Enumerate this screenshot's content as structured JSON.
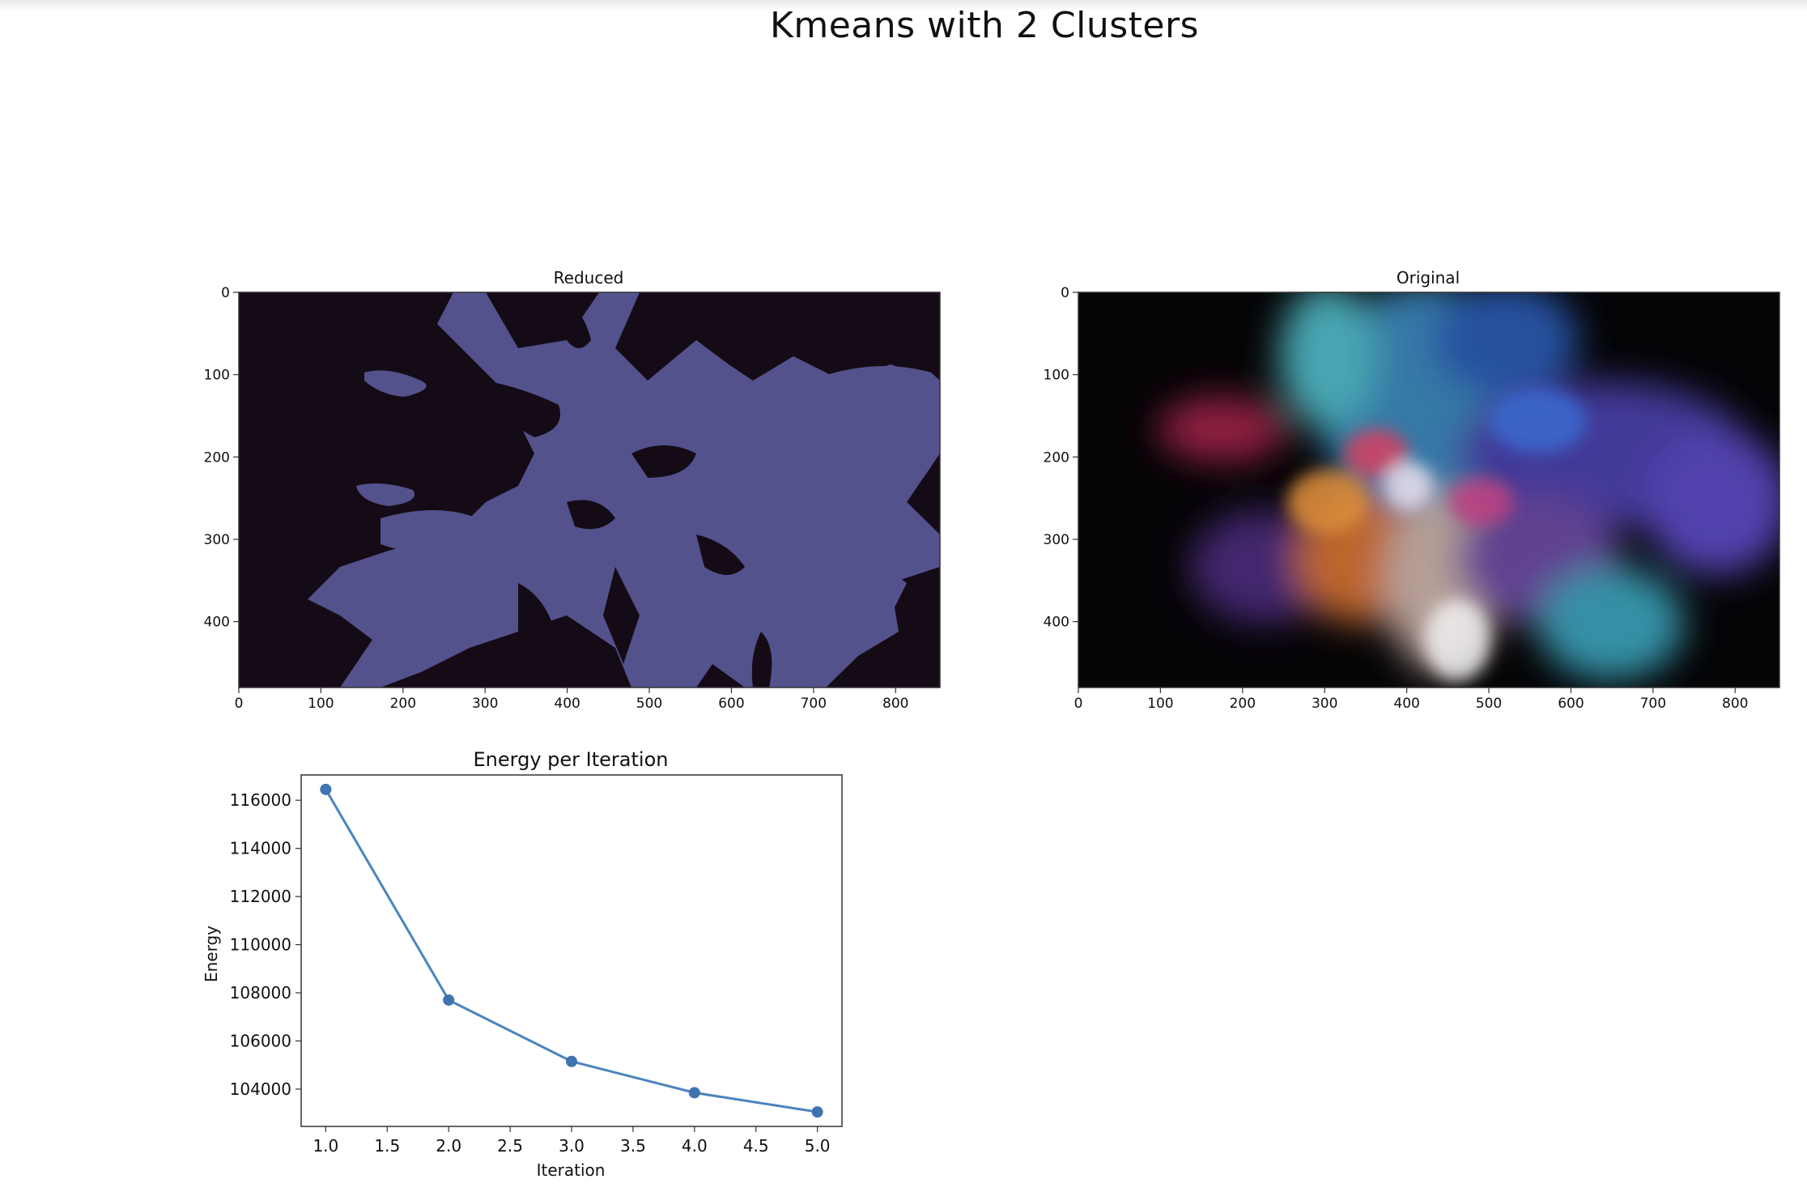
{
  "figure": {
    "title": "Kmeans with 2 Clusters"
  },
  "colors": {
    "reduced_dark": "#150b17",
    "reduced_light": "#54528c",
    "line": "#4a84bd",
    "axes": "#333333"
  },
  "chart_data": [
    {
      "type": "image",
      "title": "Reduced",
      "description_colors": [
        "#150b17",
        "#54528c"
      ],
      "xlim": [
        0,
        854
      ],
      "ylim": [
        480,
        0
      ],
      "xticks": [
        0,
        100,
        200,
        300,
        400,
        500,
        600,
        700,
        800
      ],
      "yticks": [
        0,
        100,
        200,
        300,
        400
      ]
    },
    {
      "type": "image",
      "title": "Original",
      "xlim": [
        0,
        854
      ],
      "ylim": [
        480,
        0
      ],
      "xticks": [
        0,
        100,
        200,
        300,
        400,
        500,
        600,
        700,
        800
      ],
      "yticks": [
        0,
        100,
        200,
        300,
        400
      ]
    },
    {
      "type": "line",
      "title": "Energy per Iteration",
      "xlabel": "Iteration",
      "ylabel": "Energy",
      "x": [
        1.0,
        2.0,
        3.0,
        4.0,
        5.0
      ],
      "y": [
        116450,
        107700,
        105150,
        103850,
        103050
      ],
      "xlim": [
        0.8,
        5.2
      ],
      "ylim": [
        102450,
        117050
      ],
      "xticks": [
        "1.0",
        "1.5",
        "2.0",
        "2.5",
        "3.0",
        "3.5",
        "4.0",
        "4.5",
        "5.0"
      ],
      "yticks": [
        "104000",
        "106000",
        "108000",
        "110000",
        "112000",
        "114000",
        "116000"
      ],
      "grid": false,
      "markers": true
    }
  ]
}
